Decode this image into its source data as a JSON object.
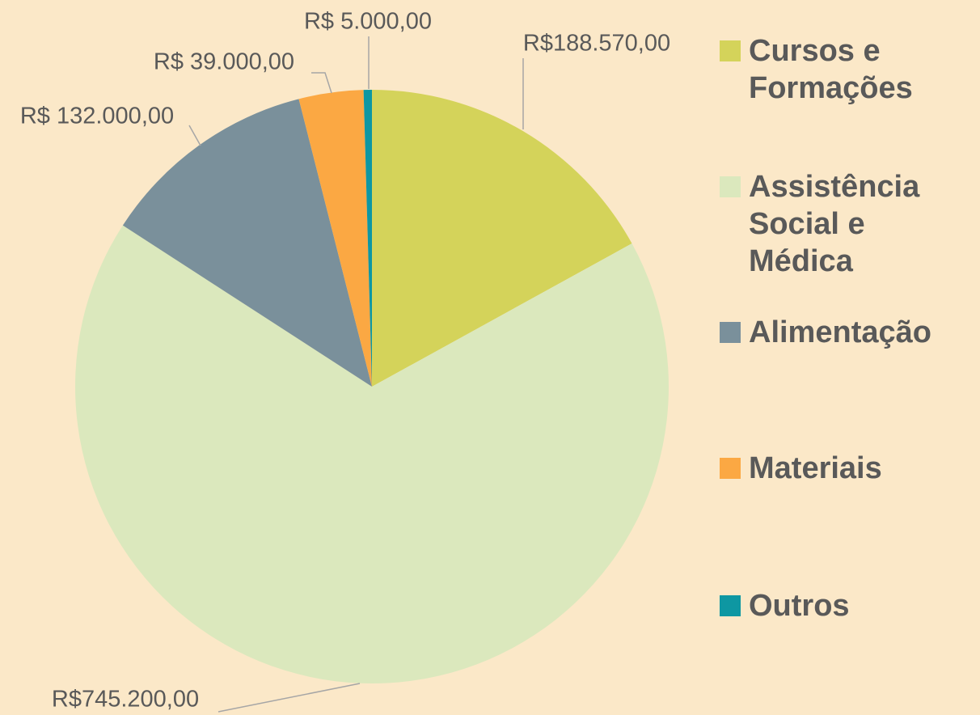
{
  "chart_data": {
    "type": "pie",
    "categories": [
      "Cursos e Formações",
      "Assistência Social e Médica",
      "Alimentação",
      "Materiais",
      "Outros"
    ],
    "values": [
      188570,
      745200,
      132000,
      39000,
      5000
    ],
    "value_labels": [
      "R$188.570,00",
      "R$745.200,00",
      "R$ 132.000,00",
      "R$ 39.000,00",
      "R$ 5.000,00"
    ],
    "colors": [
      "#d4d35a",
      "#dbe8bd",
      "#7a909b",
      "#fba843",
      "#0e97a2"
    ],
    "legend": "right"
  }
}
